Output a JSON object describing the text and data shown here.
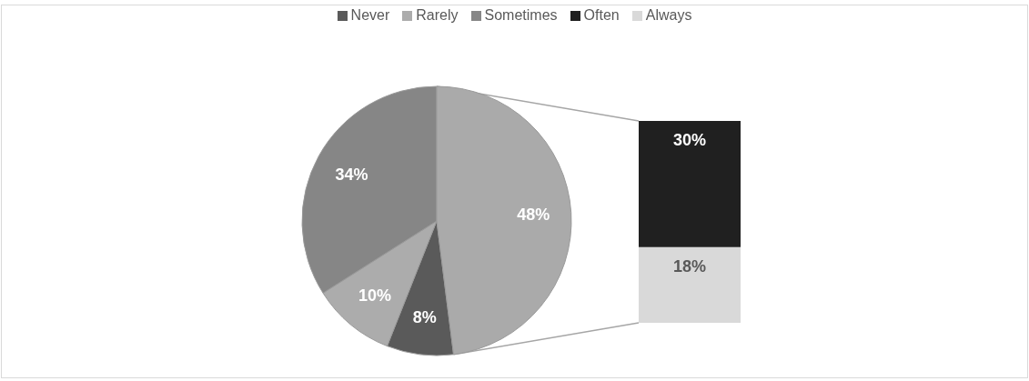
{
  "chart_data": [
    {
      "type": "pie",
      "categories": [
        "Never",
        "Rarely",
        "Sometimes",
        null
      ],
      "values": [
        8,
        10,
        34,
        48
      ],
      "colors": [
        "#5a5a5a",
        "#acacac",
        "#868686",
        "#aaaaaa"
      ],
      "value_labels": [
        "8%",
        "10%",
        "34%",
        "48%"
      ],
      "legend": "top"
    },
    {
      "type": "bar",
      "stacked": true,
      "categories": [
        null
      ],
      "legend": "top",
      "series": [
        {
          "name": "Always",
          "color": "#d9d9d9",
          "values": [
            18
          ],
          "value_labels": [
            "18%"
          ]
        },
        {
          "name": "Often",
          "color": "#202020",
          "values": [
            30
          ],
          "value_labels": [
            "30%"
          ]
        }
      ]
    }
  ]
}
